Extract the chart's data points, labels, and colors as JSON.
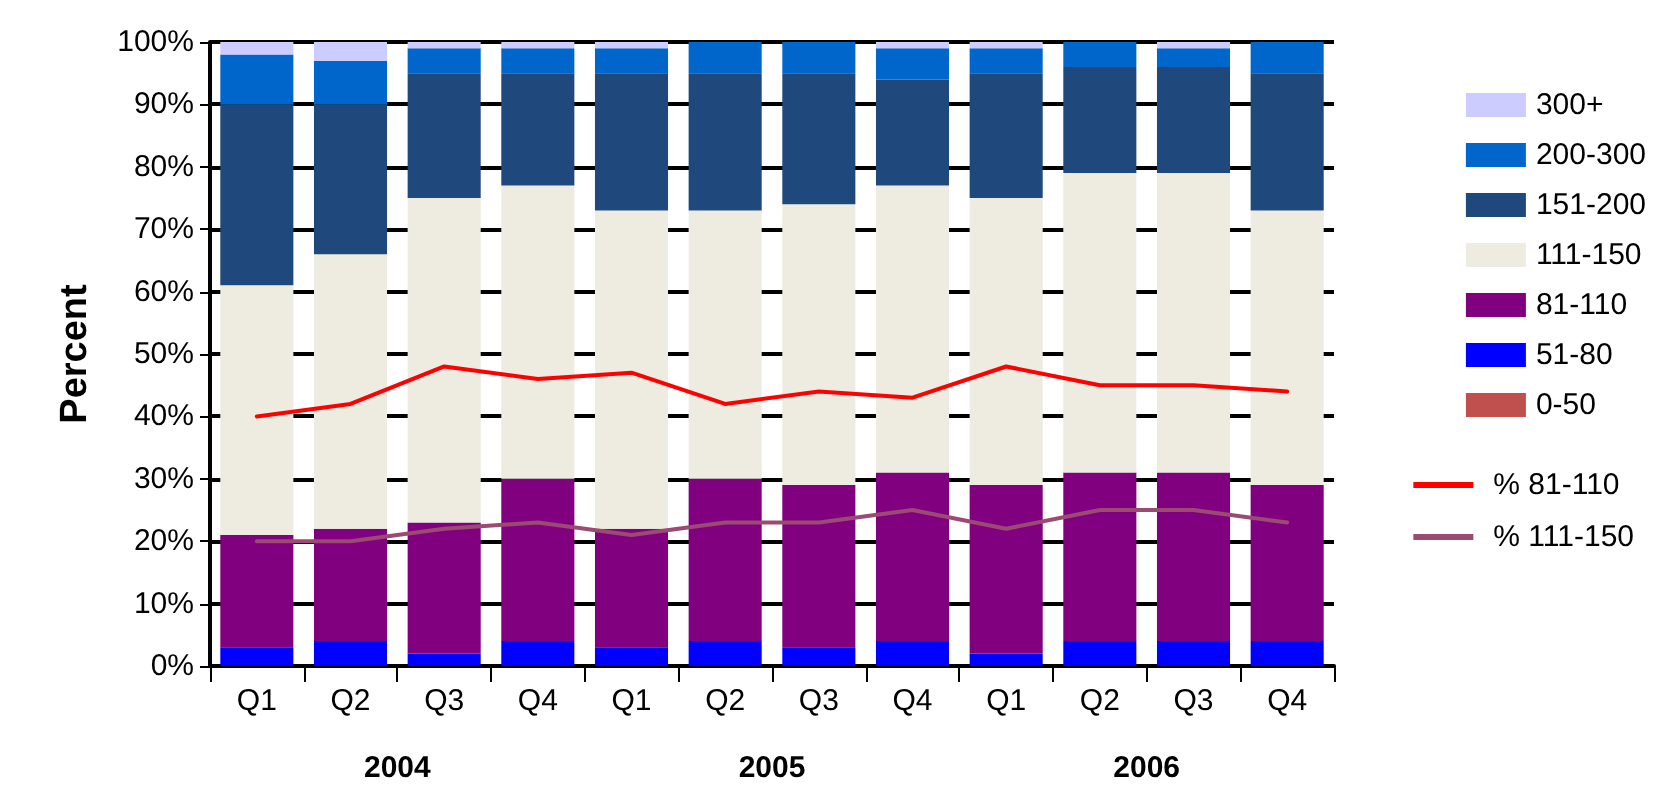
{
  "chart_data": {
    "type": "bar",
    "stacked": true,
    "ylabel": "Percent",
    "categories": [
      "Q1",
      "Q2",
      "Q3",
      "Q4",
      "Q1",
      "Q2",
      "Q3",
      "Q4",
      "Q1",
      "Q2",
      "Q3",
      "Q4"
    ],
    "annotations": [
      "2004",
      "2005",
      "2006"
    ],
    "ylim": [
      0,
      100
    ],
    "yticks": [
      {
        "value": 0,
        "label": "0%"
      },
      {
        "value": 10,
        "label": "10%"
      },
      {
        "value": 20,
        "label": "20%"
      },
      {
        "value": 30,
        "label": "30%"
      },
      {
        "value": 40,
        "label": "40%"
      },
      {
        "value": 50,
        "label": "50%"
      },
      {
        "value": 60,
        "label": "60%"
      },
      {
        "value": 70,
        "label": "70%"
      },
      {
        "value": 80,
        "label": "80%"
      },
      {
        "value": 90,
        "label": "90%"
      },
      {
        "value": 100,
        "label": "100%"
      }
    ],
    "grid": "y",
    "legend": "right",
    "marker": "none",
    "line_style": "solid",
    "series": [
      {
        "name": "0-50",
        "color": "#c0504d",
        "values": [
          0,
          0,
          0,
          0,
          0,
          0,
          0,
          0,
          0,
          0,
          0,
          0
        ]
      },
      {
        "name": "51-80",
        "color": "#0000ff",
        "values": [
          3,
          4,
          2,
          4,
          3,
          4,
          3,
          4,
          2,
          4,
          4,
          4
        ]
      },
      {
        "name": "81-110",
        "color": "#800080",
        "values": [
          18,
          18,
          21,
          26,
          19,
          26,
          26,
          27,
          27,
          27,
          27,
          25
        ]
      },
      {
        "name": "111-150",
        "color": "#eeece1",
        "values": [
          40,
          44,
          52,
          47,
          51,
          43,
          45,
          46,
          46,
          48,
          48,
          44
        ]
      },
      {
        "name": "151-200",
        "color": "#1f497d",
        "values": [
          29,
          24,
          20,
          18,
          22,
          22,
          21,
          17,
          20,
          17,
          17,
          22
        ]
      },
      {
        "name": "200-300",
        "color": "#0066cc",
        "values": [
          8,
          7,
          4,
          4,
          4,
          5,
          5,
          5,
          4,
          4,
          3,
          5
        ]
      },
      {
        "name": "300+",
        "color": "#ccccff",
        "values": [
          2,
          3,
          1,
          1,
          1,
          0,
          0,
          1,
          1,
          0,
          1,
          0
        ]
      },
      {
        "name": "% 81-110",
        "type": "line",
        "color": "#ff0000",
        "values": [
          40,
          42,
          48,
          46,
          47,
          42,
          44,
          43,
          48,
          45,
          45,
          44
        ]
      },
      {
        "name": "% 111-150",
        "type": "line",
        "color": "#9b4a72",
        "values": [
          20,
          20,
          22,
          23,
          21,
          23,
          23,
          25,
          22,
          25,
          25,
          23
        ]
      }
    ]
  }
}
